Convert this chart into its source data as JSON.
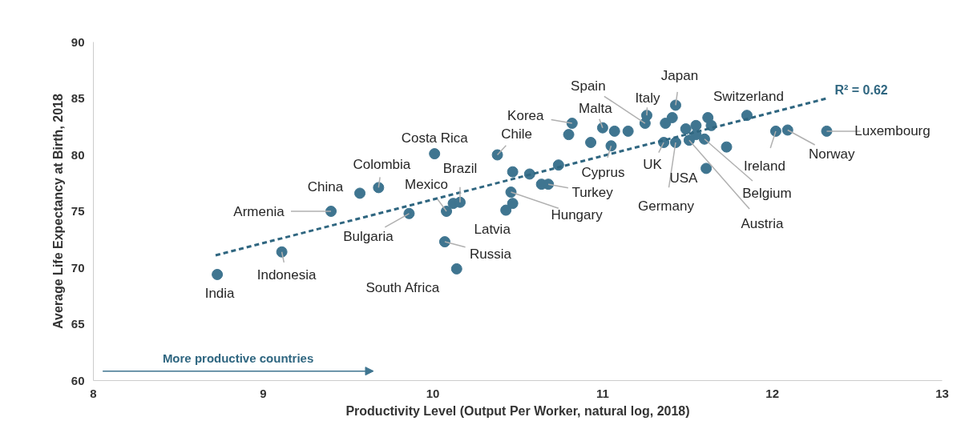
{
  "chart_data": {
    "type": "scatter",
    "xlabel": "Productivity Level (Output Per Worker, natural log, 2018)",
    "ylabel": "Average Life Expectancy at Birth, 2018",
    "xlim": [
      8,
      13
    ],
    "ylim": [
      60,
      90
    ],
    "xticks": [
      8,
      9,
      10,
      11,
      12,
      13
    ],
    "yticks": [
      60,
      65,
      70,
      75,
      80,
      85,
      90
    ],
    "grid": false,
    "marker": "circle",
    "series": [
      {
        "color": "#3f7590",
        "x": [
          8.73,
          9.11,
          9.4,
          9.57,
          9.68,
          9.86,
          10.01,
          10.38,
          10.08,
          10.12,
          10.16,
          10.07,
          10.14,
          10.43,
          10.47,
          10.46,
          10.47,
          10.57,
          10.64,
          10.68,
          10.74,
          10.8,
          10.82,
          10.93,
          11.0,
          11.07,
          11.15,
          11.05,
          11.26,
          11.25,
          11.37,
          11.41,
          11.43,
          11.36,
          11.43,
          11.49,
          11.55,
          11.55,
          11.51,
          11.6,
          11.62,
          11.64,
          11.61,
          11.85,
          11.73,
          12.02,
          12.09,
          12.32
        ],
        "values": [
          69.4,
          71.4,
          75.0,
          76.6,
          77.1,
          74.8,
          80.1,
          80.0,
          75.0,
          75.7,
          75.8,
          72.3,
          69.9,
          75.1,
          75.7,
          76.7,
          78.5,
          78.3,
          77.4,
          77.4,
          79.1,
          81.8,
          82.8,
          81.1,
          82.4,
          82.1,
          82.1,
          80.8,
          83.5,
          82.8,
          82.8,
          83.3,
          84.4,
          81.1,
          81.1,
          82.3,
          82.6,
          81.8,
          81.3,
          81.4,
          83.3,
          82.6,
          78.8,
          83.5,
          80.7,
          82.1,
          82.2,
          82.1
        ]
      },
      {
        "type": "line",
        "name": "R² = 0.62",
        "color": "#2f6680",
        "line_style": "dashed",
        "marker": "none",
        "x": [
          8.72,
          12.32
        ],
        "values": [
          71.1,
          85.0
        ]
      }
    ],
    "annotations": [
      {
        "text": "Armenia",
        "x": 9.4,
        "y": 75.0
      },
      {
        "text": "China",
        "x": 9.57,
        "y": 76.6
      },
      {
        "text": "Colombia",
        "x": 9.68,
        "y": 77.1
      },
      {
        "text": "Costa Rica",
        "x": 10.01,
        "y": 80.1
      },
      {
        "text": "Brazil",
        "x": 10.16,
        "y": 75.8
      },
      {
        "text": "Mexico",
        "x": 10.08,
        "y": 75.0
      },
      {
        "text": "Bulgaria",
        "x": 9.86,
        "y": 74.8
      },
      {
        "text": "Indonesia",
        "x": 9.11,
        "y": 71.4
      },
      {
        "text": "India",
        "x": 8.73,
        "y": 69.4
      },
      {
        "text": "South Africa",
        "x": 10.14,
        "y": 69.9
      },
      {
        "text": "Russia",
        "x": 10.07,
        "y": 72.3
      },
      {
        "text": "Latvia",
        "x": 10.43,
        "y": 75.1
      },
      {
        "text": "Hungary",
        "x": 10.46,
        "y": 76.7
      },
      {
        "text": "Turkey",
        "x": 10.68,
        "y": 77.4
      },
      {
        "text": "Chile",
        "x": 10.38,
        "y": 80.0
      },
      {
        "text": "Korea",
        "x": 10.82,
        "y": 82.8
      },
      {
        "text": "Malta",
        "x": 11.0,
        "y": 82.4
      },
      {
        "text": "Spain",
        "x": 11.25,
        "y": 82.8
      },
      {
        "text": "Italy",
        "x": 11.26,
        "y": 83.5
      },
      {
        "text": "Japan",
        "x": 11.43,
        "y": 84.4
      },
      {
        "text": "Cyprus",
        "x": 11.05,
        "y": 80.8
      },
      {
        "text": "UK",
        "x": 11.36,
        "y": 81.1
      },
      {
        "text": "USA",
        "x": 11.43,
        "y": 81.1
      },
      {
        "text": "Germany",
        "x": 11.43,
        "y": 81.1
      },
      {
        "text": "Belgium",
        "x": 11.6,
        "y": 81.4
      },
      {
        "text": "Austria",
        "x": 11.51,
        "y": 81.3
      },
      {
        "text": "Switzerland",
        "x": 11.85,
        "y": 83.5
      },
      {
        "text": "Ireland",
        "x": 12.02,
        "y": 82.1
      },
      {
        "text": "Norway",
        "x": 12.09,
        "y": 82.2
      },
      {
        "text": "Luxembourg",
        "x": 12.32,
        "y": 82.1
      },
      "More productive countries"
    ]
  }
}
